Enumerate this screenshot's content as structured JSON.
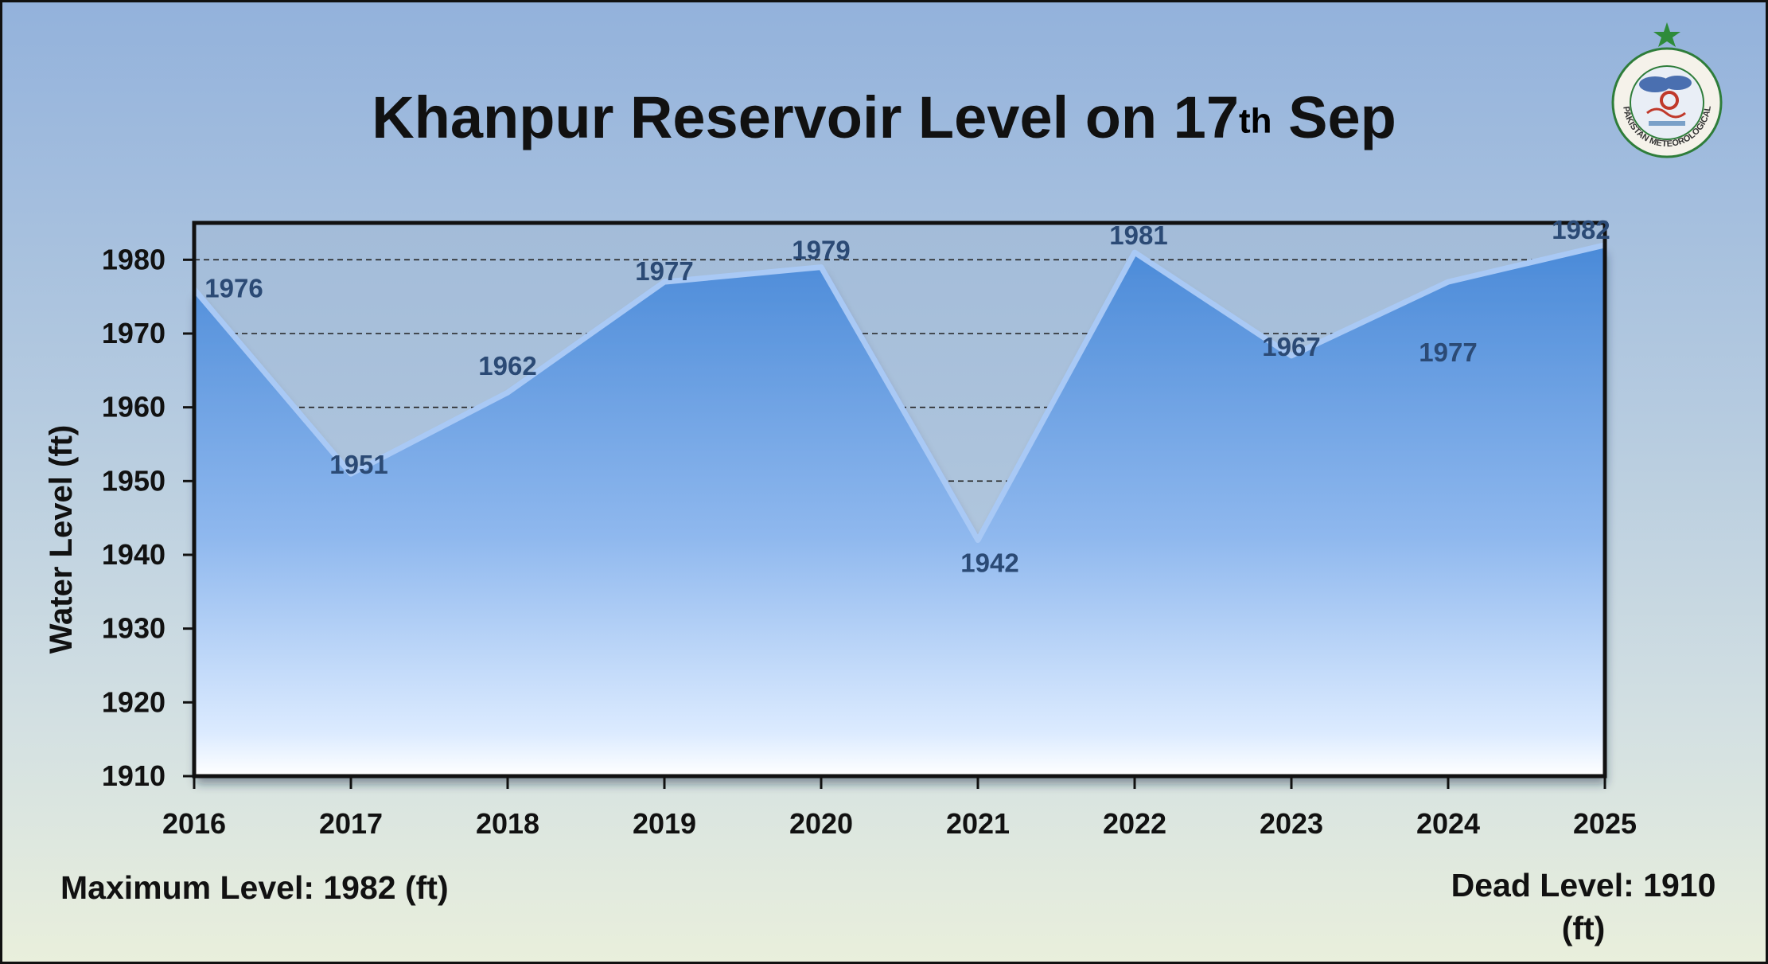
{
  "title": {
    "text": "Khanpur Reservoir Level on 17",
    "sup": "th",
    "suffix": " Sep"
  },
  "notes": {
    "max_level": "Maximum Level: 1982 (ft)",
    "dead_level": "Dead Level: 1910 (ft)"
  },
  "logo": {
    "text": "PAKISTAN METEOROLOGICAL DEPARTMENT",
    "icon": "pmd-emblem-icon"
  },
  "colors": {
    "fill_top": "#4f8fdc",
    "fill_bottom": "#eef6ff",
    "line": "#a9c9f5",
    "data_label": "#2b4a75"
  },
  "chart_data": {
    "type": "area",
    "title": "Khanpur Reservoir Level on 17th Sep",
    "xlabel": "",
    "ylabel": "Water Level (ft)",
    "x": [
      "2016",
      "2017",
      "2018",
      "2019",
      "2020",
      "2021",
      "2022",
      "2023",
      "2024",
      "2025"
    ],
    "values": [
      1976,
      1951,
      1962,
      1977,
      1979,
      1942,
      1981,
      1967,
      1977,
      1982
    ],
    "data_labels": [
      "1976",
      "1951",
      "1962",
      "1977",
      "1979",
      "1942",
      "1981",
      "1967",
      "1977",
      "1982"
    ],
    "ylim": [
      1910,
      1985
    ],
    "yticks": [
      "1910",
      "1920",
      "1930",
      "1940",
      "1950",
      "1960",
      "1970",
      "1980"
    ],
    "grid": true,
    "legend": "none"
  }
}
